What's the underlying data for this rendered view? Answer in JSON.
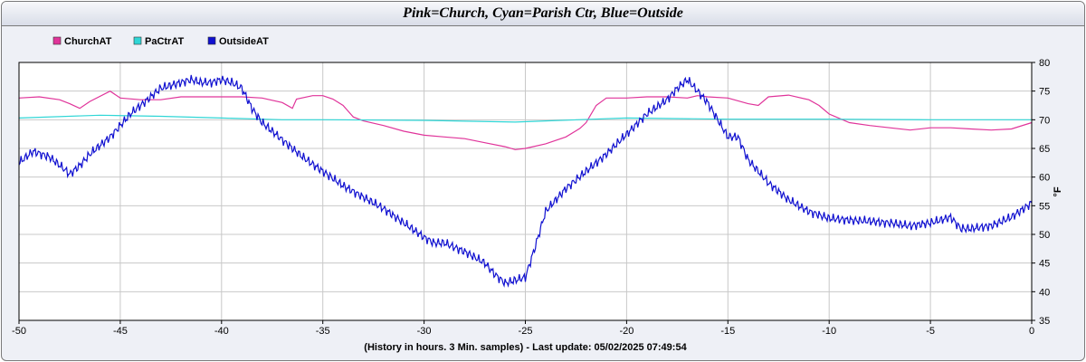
{
  "chart_data": {
    "type": "line",
    "title": "Pink=Church, Cyan=Parish Ctr, Blue=Outside",
    "xlabel": "(History in hours. 3 Min. samples) - Last update: 05/02/2025 07:49:54",
    "ylabel": "°F",
    "xlim": [
      -50,
      0
    ],
    "ylim": [
      35,
      80
    ],
    "xticks": [
      -50,
      -45,
      -40,
      -35,
      -30,
      -25,
      -20,
      -15,
      -10,
      -5,
      0
    ],
    "yticks": [
      35,
      40,
      45,
      50,
      55,
      60,
      65,
      70,
      75,
      80
    ],
    "grid": true,
    "legend_position": "top-left",
    "series": [
      {
        "name": "ChurchAT",
        "color": "#e0349a",
        "x": [
          -50,
          -49,
          -48,
          -47.5,
          -47,
          -46.5,
          -45.5,
          -45,
          -44,
          -43,
          -42,
          -41,
          -40,
          -39,
          -38,
          -37,
          -36.5,
          -36.3,
          -35.5,
          -35,
          -34.5,
          -34,
          -33.5,
          -33,
          -32,
          -31,
          -30,
          -29,
          -28,
          -27,
          -26,
          -25.5,
          -25,
          -24,
          -23,
          -22.3,
          -22,
          -21.5,
          -21,
          -20,
          -19,
          -18,
          -17,
          -16.5,
          -16,
          -15,
          -14,
          -13.5,
          -13,
          -12,
          -11,
          -10.5,
          -10,
          -9,
          -8,
          -7,
          -6,
          -5,
          -4,
          -3,
          -2,
          -1,
          0
        ],
        "y": [
          73.8,
          74,
          73.5,
          72.8,
          72,
          73.2,
          75,
          73.8,
          73.5,
          73.5,
          74,
          74,
          74,
          74,
          73.8,
          73,
          72,
          73.6,
          74.2,
          74.2,
          73.6,
          72.5,
          70.5,
          69.8,
          69,
          68,
          67.3,
          67,
          66.7,
          66,
          65.3,
          64.8,
          65,
          65.8,
          67,
          68.5,
          69.5,
          72.5,
          73.8,
          73.8,
          74,
          74,
          73.8,
          74.2,
          74,
          73.8,
          72.8,
          72.5,
          74,
          74.3,
          73.5,
          72.5,
          71,
          69.5,
          69,
          68.6,
          68.2,
          68.6,
          68.6,
          68.4,
          68.2,
          68.4,
          69.5
        ]
      },
      {
        "name": "PaCtrAT",
        "color": "#2fd6d6",
        "x": [
          -50,
          -46,
          -43,
          -40,
          -37,
          -35,
          -30,
          -25.5,
          -24,
          -20,
          -15,
          -10,
          -5,
          0
        ],
        "y": [
          70.3,
          70.8,
          70.6,
          70.3,
          70.0,
          70.0,
          69.9,
          69.6,
          69.8,
          70.3,
          70.1,
          70.1,
          70.0,
          70.0
        ]
      },
      {
        "name": "OutsideAT",
        "color": "#1010d0",
        "x": [
          -50,
          -49.3,
          -48.5,
          -47.8,
          -47.5,
          -47,
          -46.5,
          -45.5,
          -45,
          -44.5,
          -44,
          -43.5,
          -43,
          -42.5,
          -42,
          -41.5,
          -41,
          -40.5,
          -40,
          -39.5,
          -39,
          -38.5,
          -38,
          -37,
          -36,
          -35,
          -34,
          -33,
          -32,
          -31,
          -30,
          -29.5,
          -29,
          -28,
          -27,
          -26.5,
          -26,
          -25.5,
          -25,
          -24.5,
          -24,
          -23,
          -22,
          -21,
          -20,
          -19,
          -18,
          -17.5,
          -17,
          -16.5,
          -16,
          -15.5,
          -15,
          -14.5,
          -14,
          -13,
          -12,
          -11,
          -10,
          -9,
          -8,
          -7,
          -6,
          -5,
          -4.5,
          -4,
          -3.5,
          -3,
          -2,
          -1,
          0
        ],
        "y": [
          62.5,
          64.5,
          63.5,
          61.5,
          60.5,
          62,
          64,
          67,
          69,
          71,
          72.5,
          74,
          75.5,
          76,
          76.5,
          77,
          76.5,
          76.5,
          77,
          76.5,
          75.5,
          72,
          69.5,
          66.5,
          63.5,
          61,
          58.5,
          56.5,
          54.5,
          52,
          49.5,
          48.5,
          48.5,
          47,
          45,
          43,
          41.5,
          42,
          42.5,
          48,
          54,
          58,
          61,
          64,
          67.5,
          71,
          73.5,
          75.5,
          77,
          75,
          73,
          70,
          67,
          67,
          63,
          59,
          56,
          54,
          52.8,
          52.5,
          52.3,
          52,
          51.5,
          52,
          52.5,
          53,
          51,
          51,
          51.5,
          53,
          55.5
        ]
      }
    ]
  }
}
